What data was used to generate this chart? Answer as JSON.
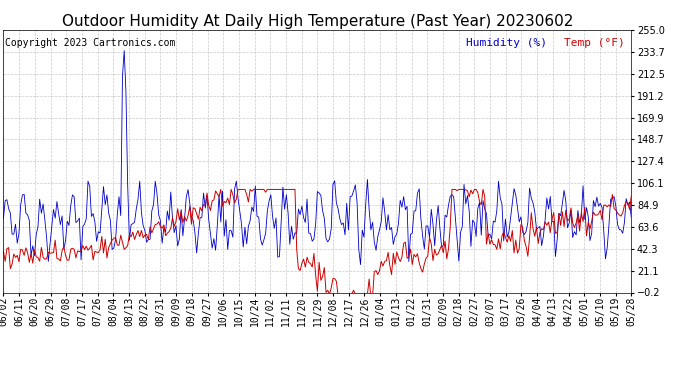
{
  "title": "Outdoor Humidity At Daily High Temperature (Past Year) 20230602",
  "copyright": "Copyright 2023 Cartronics.com",
  "legend_humidity": "Humidity (%)",
  "legend_temp": "Temp (°F)",
  "humidity_color": "#0000cc",
  "temp_color": "#cc0000",
  "background_color": "#ffffff",
  "plot_bg_color": "#ffffff",
  "grid_color": "#bbbbbb",
  "ylim": [
    -0.2,
    255.0
  ],
  "yticks": [
    255.0,
    233.7,
    212.5,
    191.2,
    169.9,
    148.7,
    127.4,
    106.1,
    84.9,
    63.6,
    42.3,
    21.1,
    -0.2
  ],
  "xtick_labels": [
    "06/02",
    "06/11",
    "06/20",
    "06/29",
    "07/08",
    "07/17",
    "07/26",
    "08/04",
    "08/13",
    "08/22",
    "08/31",
    "09/09",
    "09/18",
    "09/27",
    "10/06",
    "10/15",
    "10/24",
    "11/02",
    "11/11",
    "11/20",
    "11/29",
    "12/08",
    "12/17",
    "12/26",
    "01/04",
    "01/13",
    "01/22",
    "01/31",
    "02/09",
    "02/18",
    "02/27",
    "03/07",
    "03/17",
    "03/26",
    "04/04",
    "04/13",
    "04/22",
    "05/01",
    "05/10",
    "05/19",
    "05/28"
  ],
  "title_fontsize": 11,
  "tick_fontsize": 7,
  "legend_fontsize": 8,
  "copyright_fontsize": 7,
  "n_xticks": 41
}
